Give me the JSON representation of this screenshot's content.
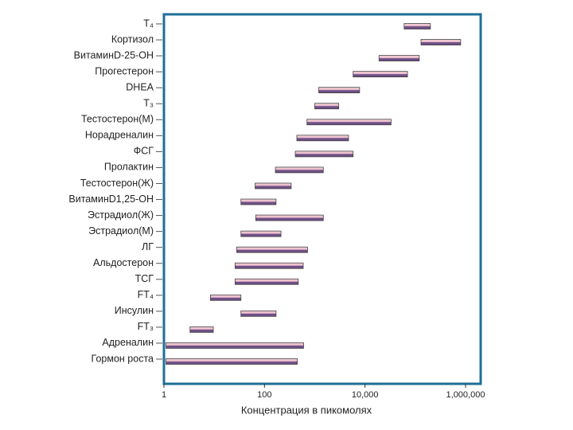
{
  "chart_data": {
    "type": "range-bar",
    "categories": [
      "T₄",
      "Кортизол",
      "ВитаминD-25-OH",
      "Прогестерон",
      "DHEA",
      "T₃",
      "Тестостерон(М)",
      "Норадреналин",
      "ФСГ",
      "Пролактин",
      "Тестостерон(Ж)",
      "ВитаминD1,25-OH",
      "Эстрадиол(Ж)",
      "Эстрадиол(М)",
      "ЛГ",
      "Альдостерон",
      "ТСГ",
      "FT₄",
      "Инсулин",
      "FT₃",
      "Адреналин",
      "Гормон роста"
    ],
    "low": [
      60000,
      130000,
      19000,
      5800,
      1200,
      1000,
      700,
      440,
      410,
      165,
      65,
      34,
      67,
      34,
      28,
      26,
      26,
      8.4,
      34,
      3.3,
      1.1,
      1.1
    ],
    "high": [
      200000,
      800000,
      120000,
      70000,
      7800,
      3000,
      33000,
      4700,
      5800,
      1480,
      340,
      170,
      1480,
      213,
      720,
      590,
      470,
      34,
      170,
      9.6,
      600,
      450
    ],
    "color": "#6e4f86",
    "frame_color": "#1f6f97",
    "xlabel": "Концентрация  в пикомолях",
    "xscale": "log",
    "xlim": [
      1,
      2000000
    ],
    "xticks": [
      1,
      100,
      {
        "value": 10000,
        "label": "10,000"
      },
      {
        "value": 1000000,
        "label": "1,000,000"
      }
    ]
  }
}
